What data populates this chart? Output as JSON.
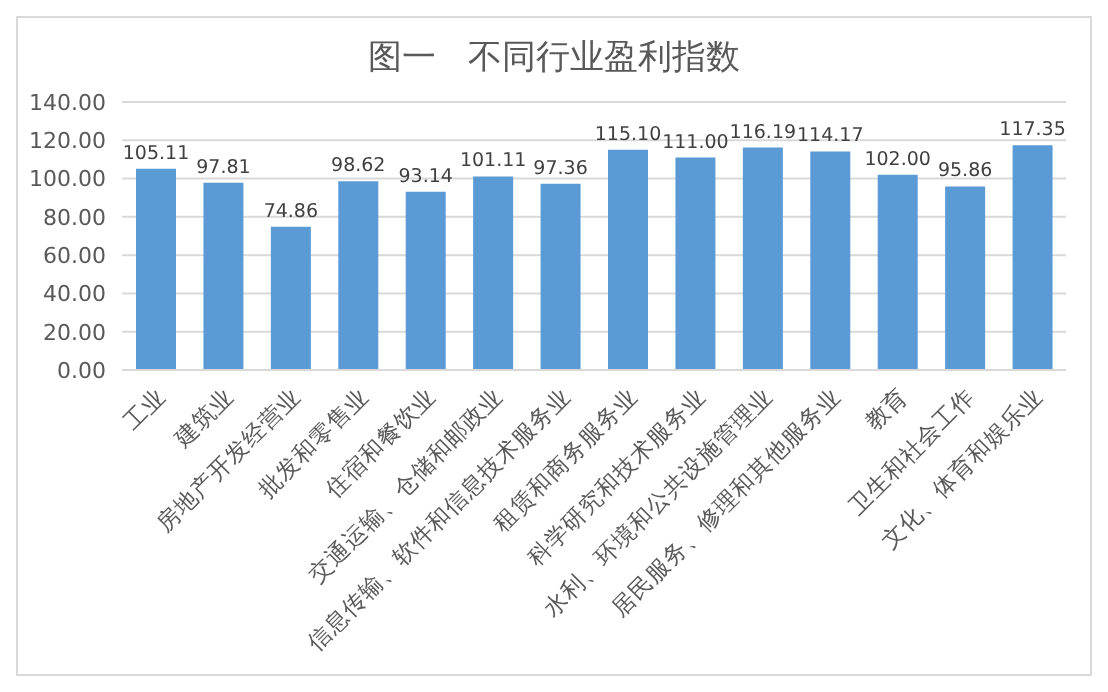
{
  "chart_data": {
    "type": "bar",
    "title": "图一   不同行业盈利指数",
    "categories": [
      "工业",
      "建筑业",
      "房地产开发经营业",
      "批发和零售业",
      "住宿和餐饮业",
      "交通运输、仓储和邮政业",
      "信息传输、软件和信息技术服务业",
      "租赁和商务服务业",
      "科学研究和技术服务业",
      "水利、环境和公共设施管理业",
      "居民服务、修理和其他服务业",
      "教育",
      "卫生和社会工作",
      "文化、体育和娱乐业"
    ],
    "values": [
      105.11,
      97.81,
      74.86,
      98.62,
      93.14,
      101.11,
      97.36,
      115.1,
      111.0,
      116.19,
      114.17,
      102.0,
      95.86,
      117.35
    ],
    "value_labels": [
      "105.11",
      "97.81",
      "74.86",
      "98.62",
      "93.14",
      "101.11",
      "97.36",
      "115.10",
      "111.00",
      "116.19",
      "114.17",
      "102.00",
      "95.86",
      "117.35"
    ],
    "color": "#5b9bd5",
    "ylim": [
      0,
      140
    ],
    "yticks": [
      {
        "value": 0,
        "label": "0.00"
      },
      {
        "value": 20,
        "label": "20.00"
      },
      {
        "value": 40,
        "label": "40.00"
      },
      {
        "value": 60,
        "label": "60.00"
      },
      {
        "value": 80,
        "label": "80.00"
      },
      {
        "value": 100,
        "label": "100.00"
      },
      {
        "value": 120,
        "label": "120.00"
      },
      {
        "value": 140,
        "label": "140.00"
      }
    ],
    "grid": "y"
  }
}
